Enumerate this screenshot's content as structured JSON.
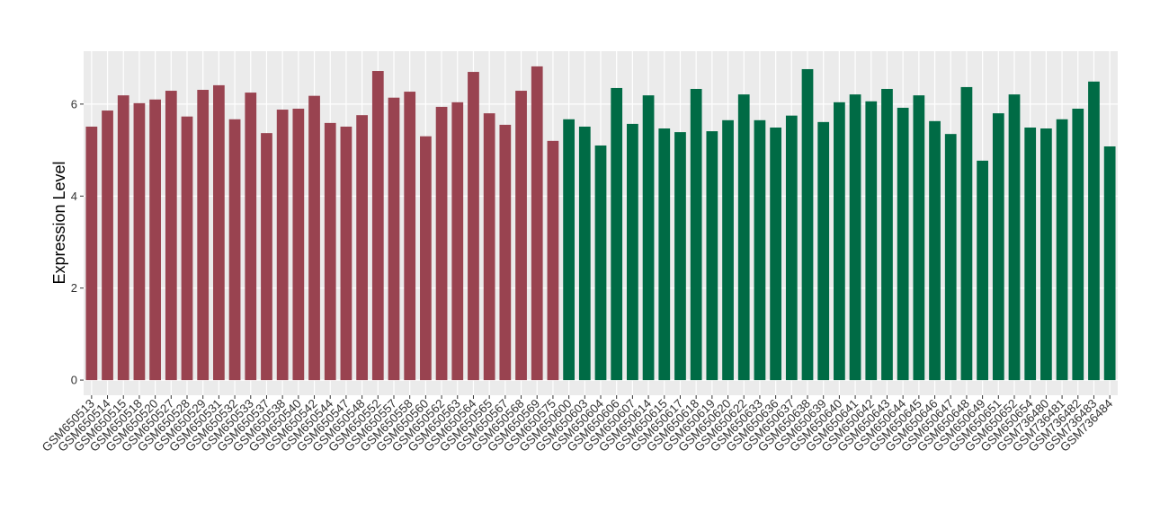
{
  "chart_data": {
    "type": "bar",
    "y_label": "Expression Level",
    "categories": [
      "GSM650513",
      "GSM650514",
      "GSM650515",
      "GSM650518",
      "GSM650520",
      "GSM650527",
      "GSM650528",
      "GSM650529",
      "GSM650531",
      "GSM650532",
      "GSM650533",
      "GSM650537",
      "GSM650538",
      "GSM650540",
      "GSM650542",
      "GSM650544",
      "GSM650547",
      "GSM650548",
      "GSM650552",
      "GSM650557",
      "GSM650558",
      "GSM650560",
      "GSM650562",
      "GSM650563",
      "GSM650564",
      "GSM650565",
      "GSM650567",
      "GSM650568",
      "GSM650569",
      "GSM650575",
      "GSM650600",
      "GSM650603",
      "GSM650604",
      "GSM650606",
      "GSM650607",
      "GSM650614",
      "GSM650615",
      "GSM650617",
      "GSM650618",
      "GSM650619",
      "GSM650620",
      "GSM650622",
      "GSM650633",
      "GSM650636",
      "GSM650637",
      "GSM650638",
      "GSM650639",
      "GSM650640",
      "GSM650641",
      "GSM650642",
      "GSM650643",
      "GSM650644",
      "GSM650645",
      "GSM650646",
      "GSM650647",
      "GSM650648",
      "GSM650649",
      "GSM650651",
      "GSM650652",
      "GSM650654",
      "GSM736480",
      "GSM736481",
      "GSM736482",
      "GSM736483",
      "GSM736484"
    ],
    "values": [
      5.51,
      5.86,
      6.19,
      6.02,
      6.1,
      6.29,
      5.73,
      6.31,
      6.41,
      5.67,
      6.25,
      5.37,
      5.88,
      5.9,
      6.18,
      5.59,
      5.51,
      5.76,
      6.72,
      6.14,
      6.27,
      5.3,
      5.94,
      6.04,
      6.7,
      5.8,
      5.55,
      6.29,
      6.82,
      5.2,
      5.67,
      5.51,
      5.1,
      6.35,
      5.57,
      6.19,
      5.47,
      5.39,
      6.33,
      5.41,
      5.65,
      6.21,
      5.65,
      5.49,
      5.75,
      6.76,
      5.61,
      6.04,
      6.21,
      6.06,
      6.33,
      5.92,
      6.19,
      5.63,
      5.35,
      6.37,
      4.77,
      5.8,
      6.21,
      5.49,
      5.47,
      5.67,
      5.9,
      6.49,
      5.08
    ],
    "colors": [
      "#994350",
      "#994350",
      "#994350",
      "#994350",
      "#994350",
      "#994350",
      "#994350",
      "#994350",
      "#994350",
      "#994350",
      "#994350",
      "#994350",
      "#994350",
      "#994350",
      "#994350",
      "#994350",
      "#994350",
      "#994350",
      "#994350",
      "#994350",
      "#994350",
      "#994350",
      "#994350",
      "#994350",
      "#994350",
      "#994350",
      "#994350",
      "#994350",
      "#994350",
      "#994350",
      "#006b45",
      "#006b45",
      "#006b45",
      "#006b45",
      "#006b45",
      "#006b45",
      "#006b45",
      "#006b45",
      "#006b45",
      "#006b45",
      "#006b45",
      "#006b45",
      "#006b45",
      "#006b45",
      "#006b45",
      "#006b45",
      "#006b45",
      "#006b45",
      "#006b45",
      "#006b45",
      "#006b45",
      "#006b45",
      "#006b45",
      "#006b45",
      "#006b45",
      "#006b45",
      "#006b45",
      "#006b45",
      "#006b45",
      "#006b45",
      "#006b45",
      "#006b45",
      "#006b45",
      "#006b45",
      "#006b45"
    ],
    "ylim": [
      -0.33,
      7.15
    ],
    "yticks": [
      0,
      2,
      4,
      6
    ],
    "grid": true
  }
}
